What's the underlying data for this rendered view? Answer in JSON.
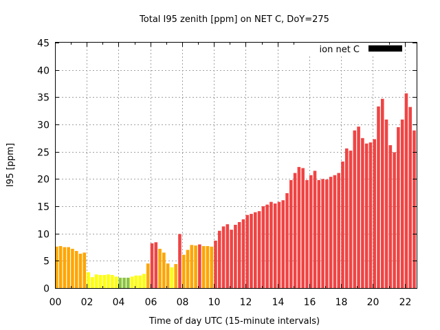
{
  "chart_data": {
    "type": "bar",
    "title": "Total I95 zenith [ppm] on NET C, DoY=275",
    "xlabel": "Time of day UTC (15-minute intervals)",
    "ylabel": "I95 [ppm]",
    "ylim": [
      0,
      45
    ],
    "xlim_hours": [
      0,
      22.75
    ],
    "yticks": [
      "0",
      "5",
      "10",
      "15",
      "20",
      "25",
      "30",
      "35",
      "40",
      "45"
    ],
    "xticks": [
      "00",
      "02",
      "04",
      "06",
      "08",
      "10",
      "12",
      "14",
      "16",
      "18",
      "20",
      "22"
    ],
    "grid": true,
    "legend": {
      "label": "ion net C",
      "position": "top-right",
      "color": "#000000"
    },
    "interval_minutes": 15,
    "start_time": "00:00",
    "values": [
      7.6,
      7.7,
      7.5,
      7.5,
      7.2,
      6.8,
      6.3,
      6.5,
      2.9,
      2.0,
      2.5,
      2.4,
      2.4,
      2.5,
      2.4,
      2.1,
      1.9,
      1.9,
      1.9,
      2.1,
      2.3,
      2.3,
      2.6,
      4.5,
      8.2,
      8.4,
      7.2,
      6.5,
      4.5,
      3.8,
      4.4,
      9.9,
      6.1,
      7.0,
      7.9,
      7.8,
      8.0,
      7.7,
      7.7,
      7.6,
      8.7,
      10.5,
      11.3,
      11.7,
      10.7,
      11.6,
      12.1,
      12.6,
      13.4,
      13.6,
      13.9,
      14.1,
      15.0,
      15.3,
      15.8,
      15.5,
      15.8,
      16.1,
      17.4,
      19.8,
      21.1,
      22.2,
      22.0,
      19.8,
      20.7,
      21.5,
      19.8,
      20.0,
      19.9,
      20.4,
      20.7,
      21.1,
      23.2,
      25.6,
      25.2,
      28.9,
      29.6,
      27.5,
      26.5,
      26.7,
      27.3,
      33.3,
      34.7,
      30.9,
      26.2,
      24.9,
      29.5,
      30.9,
      35.7,
      33.2,
      28.9,
      28.7
    ],
    "status": [
      "O",
      "O",
      "O",
      "O",
      "O",
      "O",
      "O",
      "O",
      "Y",
      "Y",
      "Y",
      "Y",
      "Y",
      "Y",
      "Y",
      "Y",
      "G",
      "G",
      "G",
      "Y",
      "Y",
      "Y",
      "Y",
      "O",
      "R",
      "R",
      "O",
      "O",
      "O",
      "Y",
      "O",
      "R",
      "O",
      "O",
      "O",
      "O",
      "R",
      "O",
      "O",
      "O",
      "R",
      "R",
      "R",
      "R",
      "R",
      "R",
      "R",
      "R",
      "R",
      "R",
      "R",
      "R",
      "R",
      "R",
      "R",
      "R",
      "R",
      "R",
      "R",
      "R",
      "R",
      "R",
      "R",
      "R",
      "R",
      "R",
      "R",
      "R",
      "R",
      "R",
      "R",
      "R",
      "R",
      "R",
      "R",
      "R",
      "R",
      "R",
      "R",
      "R",
      "R",
      "R",
      "R",
      "R",
      "R",
      "R",
      "R",
      "R",
      "R",
      "R",
      "R",
      "R"
    ],
    "status_colors": {
      "G": "#8bc43f",
      "Y": "#ffff00",
      "O": "#ffa500",
      "R": "#ef4444"
    }
  }
}
